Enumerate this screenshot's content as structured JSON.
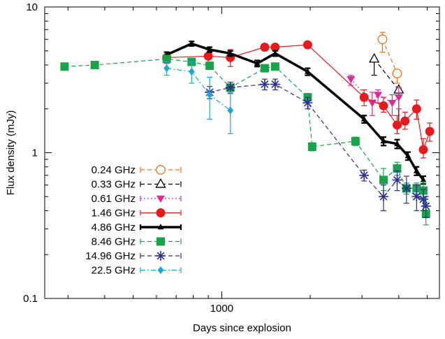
{
  "chart_data": {
    "type": "line",
    "title": "",
    "xlabel": "Days since explosion",
    "ylabel": "Flux density (mJy)",
    "x_scale": "log",
    "y_scale": "log",
    "xlim": [
      250,
      5500
    ],
    "ylim": [
      0.1,
      10
    ],
    "x_tick_labels": [
      {
        "value": 1000,
        "label": "1000"
      }
    ],
    "y_tick_labels": [
      {
        "value": 0.1,
        "label": "0.1"
      },
      {
        "value": 1,
        "label": "1"
      },
      {
        "value": 10,
        "label": "10"
      }
    ],
    "grid": false,
    "legend_position": "bottom-left",
    "series": [
      {
        "name": "0.24 GHz",
        "color": "#e8731f",
        "marker": "open-circle",
        "line_style": "dashed",
        "line_width": 1.2,
        "points": [
          {
            "x": 3520,
            "y": 6.0,
            "y_low": 4.9,
            "y_high": 6.7
          },
          {
            "x": 3950,
            "y": 3.5,
            "y_low": 3.0,
            "y_high": 3.5
          }
        ]
      },
      {
        "name": "0.33 GHz",
        "color": "#000000",
        "marker": "open-triangle",
        "line_style": "dashed",
        "line_width": 1.2,
        "points": [
          {
            "x": 3300,
            "y": 4.4,
            "y_low": 3.4,
            "y_high": 4.4
          },
          {
            "x": 4000,
            "y": 2.7,
            "y_low": 1.5,
            "y_high": 2.7
          }
        ]
      },
      {
        "name": "0.61 GHz",
        "color": "#e0289b",
        "marker": "filled-down-triangle",
        "line_style": "dotted",
        "line_width": 1.2,
        "points": [
          {
            "x": 2750,
            "y": 3.2,
            "y_low": 2.9,
            "y_high": 3.4
          },
          {
            "x": 3250,
            "y": 2.2,
            "y_low": 1.8,
            "y_high": 2.6
          },
          {
            "x": 3400,
            "y": 2.5,
            "y_low": 2.2,
            "y_high": 2.7
          },
          {
            "x": 3800,
            "y": 2.2,
            "y_low": 1.8,
            "y_high": 2.5
          },
          {
            "x": 4000,
            "y": 2.4,
            "y_low": 2.0,
            "y_high": 2.8
          }
        ]
      },
      {
        "name": "1.46 GHz",
        "color": "#e41a1c",
        "marker": "filled-circle",
        "line_style": "solid",
        "line_width": 1.2,
        "points": [
          {
            "x": 650,
            "y": 4.5,
            "y_low": 4.1,
            "y_high": 4.9
          },
          {
            "x": 900,
            "y": 4.6,
            "y_low": 4.1,
            "y_high": 5.1
          },
          {
            "x": 1070,
            "y": 4.5,
            "y_low": 3.9,
            "y_high": 5.1
          },
          {
            "x": 1400,
            "y": 5.3,
            "y_low": 5.0,
            "y_high": 5.6
          },
          {
            "x": 1520,
            "y": 5.3,
            "y_low": 5.0,
            "y_high": 5.6
          },
          {
            "x": 1960,
            "y": 5.5,
            "y_low": 5.2,
            "y_high": 5.8
          },
          {
            "x": 3050,
            "y": 2.4,
            "y_low": 2.1,
            "y_high": 2.7
          },
          {
            "x": 3550,
            "y": 2.1,
            "y_low": 1.9,
            "y_high": 2.4
          },
          {
            "x": 3950,
            "y": 1.55,
            "y_low": 1.35,
            "y_high": 1.8
          },
          {
            "x": 4200,
            "y": 1.65,
            "y_low": 1.45,
            "y_high": 1.9
          },
          {
            "x": 4600,
            "y": 2.0,
            "y_low": 1.7,
            "y_high": 2.3
          },
          {
            "x": 4850,
            "y": 1.05,
            "y_low": 0.92,
            "y_high": 1.25
          },
          {
            "x": 5100,
            "y": 1.4,
            "y_low": 1.2,
            "y_high": 1.6
          }
        ]
      },
      {
        "name": "4.86 GHz",
        "color": "#000000",
        "marker": "filled-triangle",
        "line_style": "solid",
        "line_width": 3.5,
        "points": [
          {
            "x": 650,
            "y": 4.7,
            "y_low": 4.5,
            "y_high": 4.9
          },
          {
            "x": 790,
            "y": 5.6,
            "y_low": 5.4,
            "y_high": 5.8
          },
          {
            "x": 910,
            "y": 5.1,
            "y_low": 4.9,
            "y_high": 5.3
          },
          {
            "x": 1070,
            "y": 4.8,
            "y_low": 4.6,
            "y_high": 5.0
          },
          {
            "x": 1320,
            "y": 4.1,
            "y_low": 3.9,
            "y_high": 4.3
          },
          {
            "x": 1520,
            "y": 4.8,
            "y_low": 4.6,
            "y_high": 5.0
          },
          {
            "x": 1960,
            "y": 3.6,
            "y_low": 3.4,
            "y_high": 3.8
          },
          {
            "x": 3050,
            "y": 1.7,
            "y_low": 1.6,
            "y_high": 1.8
          },
          {
            "x": 3550,
            "y": 1.2,
            "y_low": 1.12,
            "y_high": 1.28
          },
          {
            "x": 3950,
            "y": 1.15,
            "y_low": 1.07,
            "y_high": 1.23
          },
          {
            "x": 4300,
            "y": 0.95,
            "y_low": 0.89,
            "y_high": 1.01
          },
          {
            "x": 4600,
            "y": 0.75,
            "y_low": 0.7,
            "y_high": 0.8
          },
          {
            "x": 4850,
            "y": 0.65,
            "y_low": 0.61,
            "y_high": 0.69
          }
        ]
      },
      {
        "name": "8.46 GHz",
        "color": "#1aa34a",
        "marker": "filled-square",
        "line_style": "dashed",
        "line_width": 1.2,
        "points": [
          {
            "x": 292,
            "y": 3.9,
            "y_low": 3.7,
            "y_high": 4.1
          },
          {
            "x": 370,
            "y": 4.0,
            "y_low": 3.8,
            "y_high": 4.2
          },
          {
            "x": 650,
            "y": 4.4,
            "y_low": 4.2,
            "y_high": 4.6
          },
          {
            "x": 790,
            "y": 4.2,
            "y_low": 4.0,
            "y_high": 4.4
          },
          {
            "x": 910,
            "y": 3.95,
            "y_low": 3.75,
            "y_high": 4.15
          },
          {
            "x": 1070,
            "y": 2.8,
            "y_low": 2.65,
            "y_high": 2.95
          },
          {
            "x": 1400,
            "y": 3.8,
            "y_low": 3.6,
            "y_high": 4.0
          },
          {
            "x": 1520,
            "y": 3.9,
            "y_low": 3.7,
            "y_high": 4.1
          },
          {
            "x": 1960,
            "y": 2.4,
            "y_low": 2.25,
            "y_high": 2.55
          },
          {
            "x": 2030,
            "y": 1.1,
            "y_low": 1.03,
            "y_high": 1.17
          },
          {
            "x": 2850,
            "y": 1.2,
            "y_low": 1.12,
            "y_high": 1.28
          },
          {
            "x": 3550,
            "y": 0.65,
            "y_low": 0.55,
            "y_high": 0.78
          },
          {
            "x": 3950,
            "y": 0.78,
            "y_low": 0.7,
            "y_high": 0.86
          },
          {
            "x": 4250,
            "y": 0.57,
            "y_low": 0.52,
            "y_high": 0.62
          },
          {
            "x": 4600,
            "y": 0.57,
            "y_low": 0.52,
            "y_high": 0.62
          },
          {
            "x": 4850,
            "y": 0.55,
            "y_low": 0.47,
            "y_high": 0.63
          },
          {
            "x": 4950,
            "y": 0.38,
            "y_low": 0.32,
            "y_high": 0.45
          }
        ]
      },
      {
        "name": "14.96 GHz",
        "color": "#2b2f8f",
        "marker": "asterisk",
        "line_style": "dashed",
        "line_width": 1.2,
        "points": [
          {
            "x": 910,
            "y": 2.6,
            "y_low": 2.35,
            "y_high": 2.85
          },
          {
            "x": 1070,
            "y": 2.8,
            "y_low": 2.55,
            "y_high": 3.05
          },
          {
            "x": 1400,
            "y": 2.95,
            "y_low": 2.7,
            "y_high": 3.2
          },
          {
            "x": 1520,
            "y": 2.95,
            "y_low": 2.7,
            "y_high": 3.2
          },
          {
            "x": 1960,
            "y": 2.2,
            "y_low": 2.0,
            "y_high": 2.4
          },
          {
            "x": 3050,
            "y": 0.7,
            "y_low": 0.64,
            "y_high": 0.76
          },
          {
            "x": 3550,
            "y": 0.5,
            "y_low": 0.4,
            "y_high": 0.6
          },
          {
            "x": 3950,
            "y": 0.65,
            "y_low": 0.55,
            "y_high": 0.75
          },
          {
            "x": 4250,
            "y": 0.57,
            "y_low": 0.45,
            "y_high": 0.69
          },
          {
            "x": 4600,
            "y": 0.5,
            "y_low": 0.4,
            "y_high": 0.6
          },
          {
            "x": 4850,
            "y": 0.48,
            "y_low": 0.4,
            "y_high": 0.56
          },
          {
            "x": 4950,
            "y": 0.43,
            "y_low": 0.36,
            "y_high": 0.5
          }
        ]
      },
      {
        "name": "22.5 GHz",
        "color": "#18a9d9",
        "marker": "filled-diamond",
        "line_style": "dash-dot",
        "line_width": 1.2,
        "points": [
          {
            "x": 650,
            "y": 3.8,
            "y_low": 3.4,
            "y_high": 4.2
          },
          {
            "x": 790,
            "y": 3.6,
            "y_low": 3.0,
            "y_high": 4.2
          },
          {
            "x": 910,
            "y": 2.5,
            "y_low": 1.7,
            "y_high": 3.3
          },
          {
            "x": 1070,
            "y": 1.95,
            "y_low": 1.35,
            "y_high": 2.6
          }
        ]
      }
    ]
  }
}
